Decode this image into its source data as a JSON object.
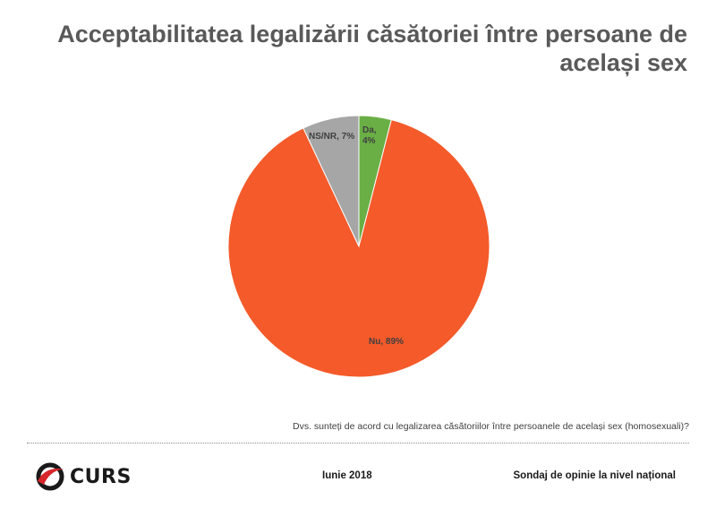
{
  "title": "Acceptabilitatea legalizării căsătoriei între persoane de același sex",
  "question": "Dvs.  sunteți de acord cu legalizarea căsătoriilor între persoanele de același sex (homosexuali)?",
  "footer": {
    "logo_text": "CURS",
    "logo_icon": "curs-swoosh-icon",
    "date": "Iunie 2018",
    "right": "Sondaj de opinie la nivel național"
  },
  "chart_data": {
    "type": "pie",
    "title": "Acceptabilitatea legalizării căsătoriei între persoane de același sex",
    "slices": [
      {
        "label": "Da",
        "value": 4,
        "color": "#6aaf45",
        "text_line1": "Da,",
        "text_line2": "4%"
      },
      {
        "label": "Nu",
        "value": 89,
        "color": "#f45a2a",
        "text_line1": "Nu, 89%"
      },
      {
        "label": "NS/NR",
        "value": 7,
        "color": "#a6a6a6",
        "text_line1": "NS/NR, 7%"
      }
    ],
    "start_angle": "top",
    "direction": "clockwise",
    "legend": "none"
  }
}
